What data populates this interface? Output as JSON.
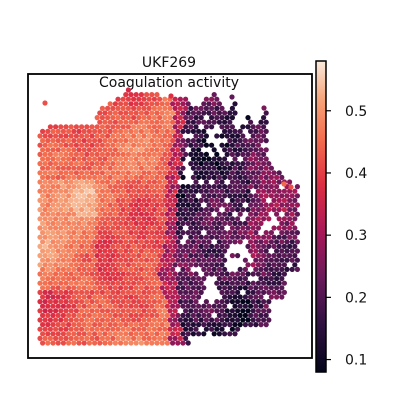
{
  "chart_data": {
    "type": "heatmap",
    "title": "UKF269",
    "subtitle": "Coagulation activity",
    "xlabel": "",
    "ylabel": "",
    "colorbar": {
      "colormap": "rocket",
      "vmin": 0.08,
      "vmax": 0.58,
      "ticks": [
        0.1,
        0.2,
        0.3,
        0.4,
        0.5
      ],
      "tick_labels": [
        "0.1",
        "0.2",
        "0.3",
        "0.4",
        "0.5"
      ],
      "placement": "right"
    },
    "axes_ticks": false,
    "grid": false,
    "spatial_pattern": {
      "high_region": "left",
      "high_value": 0.43,
      "low_region": "right",
      "low_value": 0.18,
      "boundary_x_fraction": 0.52
    }
  }
}
